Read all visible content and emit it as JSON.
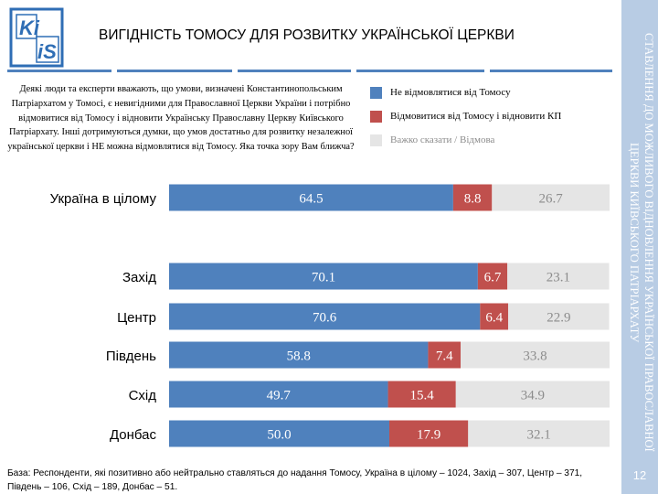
{
  "header": {
    "logo_text": "KIIS",
    "title": "ВИГІДНІСТЬ ТОМОСУ ДЛЯ РОЗВИТКУ УКРАЇНСЬКОЇ ЦЕРКВИ"
  },
  "question": "Деякі люди та експерти вважають, що умови, визначені Константинопольським Патріархатом у Томосі, є невигідними для Православної Церкви України і потрібно відмовитися від Томосу і відновити Українську Православну Церкву Київського Патріархату. Інші дотримуються думки, що умов достатньо для розвитку незалежної української церкви і НЕ можна відмовлятися від Томосу. Яка точка зору Вам ближча?",
  "side_title": "СТАВЛЕННЯ ДО МОЖЛИВОГО ВІДНОВЛЕННЯ УКРАЇНСЬКОЇ ПРАВОСЛАВНОЇ ЦЕРКВИ КИЇВСЬКОГО ПАТРІАРХАТУ",
  "page_number": "12",
  "footnote": "База: Респонденти, які позитивно або нейтрально ставляться до надання Томосу, Україна в цілому – 1024, Захід – 307, Центр – 371, Південь – 106, Схід – 189, Донбас – 51.",
  "colors": {
    "brand": "#4f81bd",
    "side_panel": "#b8cce4"
  },
  "chart_data": {
    "type": "bar",
    "orientation": "horizontal",
    "stacked": true,
    "percent": true,
    "categories": [
      "Україна в цілому",
      "Захід",
      "Центр",
      "Південь",
      "Схід",
      "Донбас"
    ],
    "series": [
      {
        "name": "Не відмовлятися від Томосу",
        "color": "#4f81bd",
        "label_color": "#ffffff",
        "values": [
          64.5,
          70.1,
          70.6,
          58.8,
          49.7,
          50.0
        ]
      },
      {
        "name": "Відмовитися від Томосу і відновити КП",
        "color": "#c0504d",
        "label_color": "#ffffff",
        "values": [
          8.8,
          6.7,
          6.4,
          7.4,
          15.4,
          17.9
        ]
      },
      {
        "name": "Важко сказати / Відмова",
        "color": "#e5e5e5",
        "label_color": "#8c8c8c",
        "values": [
          26.7,
          23.1,
          22.9,
          33.8,
          34.9,
          32.1
        ]
      }
    ],
    "legend_position": "top-right",
    "grid": false
  }
}
